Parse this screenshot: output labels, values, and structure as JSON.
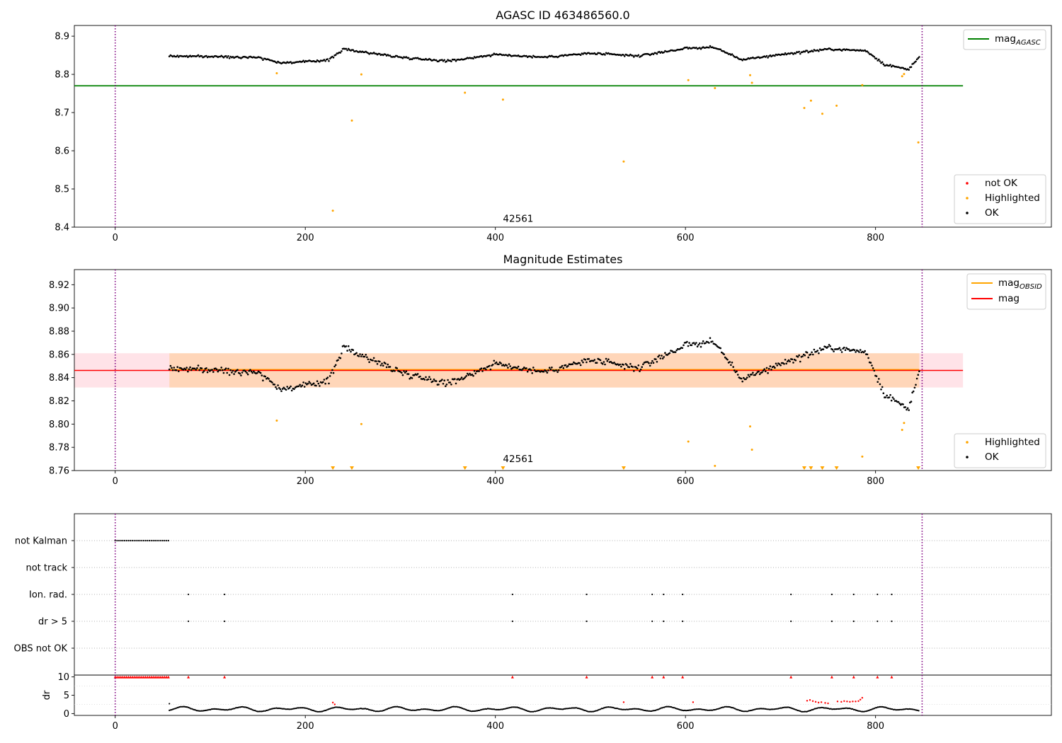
{
  "chart_data": [
    {
      "type": "scatter",
      "title": "AGASC ID 463486560.0",
      "xlabel": "",
      "ylabel": "",
      "xlim": [
        -43,
        985
      ],
      "ylim": [
        8.4,
        8.928
      ],
      "xticks": [
        0,
        200,
        400,
        600,
        800
      ],
      "yticks": [
        8.4,
        8.5,
        8.6,
        8.7,
        8.8,
        8.9
      ],
      "ytick_labels": [
        "8.4",
        "8.5",
        "8.6",
        "8.7",
        "8.8",
        "8.9"
      ],
      "vlines": [
        0,
        849
      ],
      "hlines": [
        {
          "name": "mag_agasc",
          "y": 8.77,
          "x0": -43,
          "x1": 892,
          "color": "#008000"
        }
      ],
      "annotation": {
        "text": "42561",
        "x": 424,
        "y": 8.41
      },
      "ok_series": {
        "name": "OK",
        "color": "#000000",
        "x_start": 57,
        "x_end": 846,
        "n": 650,
        "segments": [
          [
            57,
            8.848
          ],
          [
            150,
            8.845
          ],
          [
            175,
            8.83
          ],
          [
            200,
            8.833
          ],
          [
            225,
            8.838
          ],
          [
            240,
            8.866
          ],
          [
            300,
            8.845
          ],
          [
            350,
            8.835
          ],
          [
            400,
            8.852
          ],
          [
            450,
            8.845
          ],
          [
            500,
            8.855
          ],
          [
            550,
            8.848
          ],
          [
            600,
            8.868
          ],
          [
            630,
            8.871
          ],
          [
            660,
            8.838
          ],
          [
            700,
            8.852
          ],
          [
            750,
            8.866
          ],
          [
            790,
            8.862
          ],
          [
            810,
            8.825
          ],
          [
            825,
            8.818
          ],
          [
            835,
            8.814
          ],
          [
            846,
            8.844
          ]
        ]
      },
      "highlighted": {
        "name": "Highlighted",
        "color": "#ffa500",
        "points": [
          [
            170,
            8.803
          ],
          [
            229,
            8.443
          ],
          [
            249,
            8.679
          ],
          [
            259,
            8.8
          ],
          [
            368,
            8.752
          ],
          [
            408,
            8.734
          ],
          [
            535,
            8.572
          ],
          [
            603,
            8.785
          ],
          [
            631,
            8.764
          ],
          [
            668,
            8.798
          ],
          [
            670,
            8.778
          ],
          [
            725,
            8.712
          ],
          [
            732,
            8.731
          ],
          [
            744,
            8.697
          ],
          [
            759,
            8.718
          ],
          [
            786,
            8.772
          ],
          [
            828,
            8.795
          ],
          [
            830,
            8.801
          ],
          [
            845,
            8.622
          ]
        ]
      },
      "legend_lines": [
        {
          "label_main": "mag",
          "label_sub": "AGASC",
          "color": "#008000"
        }
      ],
      "legend_points": [
        {
          "label": "not OK",
          "color": "#ff0000"
        },
        {
          "label": "Highlighted",
          "color": "#ffa500"
        },
        {
          "label": "OK",
          "color": "#000000"
        }
      ]
    },
    {
      "type": "scatter",
      "title": "Magnitude Estimates",
      "xlabel": "",
      "ylabel": "",
      "xlim": [
        -43,
        985
      ],
      "ylim": [
        8.76,
        8.933
      ],
      "xticks": [
        0,
        200,
        400,
        600,
        800
      ],
      "yticks": [
        8.76,
        8.78,
        8.8,
        8.82,
        8.84,
        8.86,
        8.88,
        8.9,
        8.92
      ],
      "ytick_labels": [
        "8.76",
        "8.78",
        "8.80",
        "8.82",
        "8.84",
        "8.86",
        "8.88",
        "8.90",
        "8.92"
      ],
      "vlines": [
        0,
        849
      ],
      "bands": [
        {
          "y0": 8.8315,
          "y1": 8.861,
          "x0": -43,
          "x1": 892,
          "color": "#ffc0cb",
          "opacity": 0.45
        },
        {
          "y0": 8.8315,
          "y1": 8.861,
          "x0": 57,
          "x1": 846,
          "color": "#ffa500",
          "opacity": 0.2
        }
      ],
      "hlines": [
        {
          "name": "mag_obsid",
          "y": 8.8468,
          "x0": 57,
          "x1": 846,
          "color": "#ffa500"
        },
        {
          "name": "mag",
          "y": 8.8462,
          "x0": -43,
          "x1": 892,
          "color": "#ff0000"
        }
      ],
      "annotation": {
        "text": "42561",
        "x": 424,
        "y": 8.766
      },
      "ok_series": {
        "name": "OK",
        "color": "#000000",
        "x_start": 57,
        "x_end": 846,
        "n": 650,
        "segments": [
          [
            57,
            8.848
          ],
          [
            150,
            8.845
          ],
          [
            175,
            8.83
          ],
          [
            200,
            8.833
          ],
          [
            225,
            8.838
          ],
          [
            240,
            8.866
          ],
          [
            300,
            8.845
          ],
          [
            350,
            8.835
          ],
          [
            400,
            8.852
          ],
          [
            450,
            8.845
          ],
          [
            500,
            8.855
          ],
          [
            550,
            8.848
          ],
          [
            600,
            8.868
          ],
          [
            630,
            8.871
          ],
          [
            660,
            8.838
          ],
          [
            700,
            8.852
          ],
          [
            750,
            8.866
          ],
          [
            790,
            8.862
          ],
          [
            810,
            8.825
          ],
          [
            825,
            8.818
          ],
          [
            835,
            8.814
          ],
          [
            846,
            8.844
          ]
        ]
      },
      "highlighted": {
        "name": "Highlighted",
        "color": "#ffa500",
        "points": [
          [
            170,
            8.803
          ],
          [
            259,
            8.8
          ],
          [
            603,
            8.785
          ],
          [
            631,
            8.764
          ],
          [
            668,
            8.798
          ],
          [
            670,
            8.778
          ],
          [
            786,
            8.772
          ],
          [
            828,
            8.795
          ],
          [
            830,
            8.801
          ]
        ]
      },
      "off_scale_markers": {
        "color": "#ffa500",
        "x": [
          229,
          249,
          368,
          408,
          535,
          725,
          732,
          744,
          759,
          845
        ]
      },
      "legend_lines": [
        {
          "label_main": "mag",
          "label_sub": "OBSID",
          "color": "#ffa500"
        },
        {
          "label_main": "mag",
          "label_sub": "",
          "color": "#ff0000"
        }
      ],
      "legend_points": [
        {
          "label": "Highlighted",
          "color": "#ffa500"
        },
        {
          "label": "OK",
          "color": "#000000"
        }
      ]
    },
    {
      "type": "scatter",
      "title": "",
      "xlabel": "",
      "ylabel": "",
      "xlim": [
        -43,
        985
      ],
      "xticks": [
        0,
        200,
        400,
        600,
        800
      ],
      "vlines": [
        0,
        849
      ],
      "flag_rows": [
        "not Kalman",
        "not track",
        "Ion. rad.",
        "dr > 5",
        "OBS not OK"
      ],
      "flags": {
        "not Kalman": {
          "x_start": 0,
          "x_end": 56,
          "step": 2
        },
        "not track": {
          "x": []
        },
        "Ion. rad.": {
          "x": [
            77,
            115,
            418,
            496,
            565,
            577,
            597,
            711,
            754,
            777,
            802,
            817
          ]
        },
        "dr > 5": {
          "x": [
            77,
            115,
            418,
            496,
            565,
            577,
            597,
            711,
            754,
            777,
            802,
            817
          ]
        },
        "OBS not OK": {
          "x": []
        }
      }
    },
    {
      "type": "scatter",
      "title": "",
      "xlabel": "",
      "ylabel": "dr",
      "xlim": [
        -43,
        985
      ],
      "ylim": [
        -0.5,
        10.5
      ],
      "xticks": [
        0,
        200,
        400,
        600,
        800
      ],
      "yticks": [
        0,
        5,
        10
      ],
      "ytick_labels": [
        "0",
        "5",
        "10"
      ],
      "vlines": [
        0,
        849
      ],
      "dr_ok": {
        "color": "#000000",
        "x_start": 57,
        "x_end": 846,
        "step": 1.2,
        "base": 1.2,
        "amp": 0.7
      },
      "dr_capped": {
        "color": "#ff0000",
        "y": 10,
        "x_dense_start": 0,
        "x_dense_end": 56,
        "step": 2,
        "x": [
          77,
          115,
          418,
          496,
          565,
          577,
          597,
          711,
          754,
          777,
          802,
          817
        ]
      },
      "dr_red": {
        "color": "#ff0000",
        "points": [
          [
            229,
            3.0
          ],
          [
            231,
            2.5
          ],
          [
            535,
            3.1
          ],
          [
            608,
            3.1
          ],
          [
            728,
            3.5
          ],
          [
            731,
            3.7
          ],
          [
            734,
            3.4
          ],
          [
            737,
            3.2
          ],
          [
            740,
            3.0
          ],
          [
            743,
            3.1
          ],
          [
            747,
            2.9
          ],
          [
            750,
            2.8
          ],
          [
            760,
            3.3
          ],
          [
            764,
            3.2
          ],
          [
            767,
            3.4
          ],
          [
            770,
            3.3
          ],
          [
            773,
            3.2
          ],
          [
            776,
            3.3
          ],
          [
            779,
            3.3
          ],
          [
            782,
            3.4
          ],
          [
            784,
            3.8
          ],
          [
            786,
            4.3
          ]
        ]
      }
    }
  ]
}
